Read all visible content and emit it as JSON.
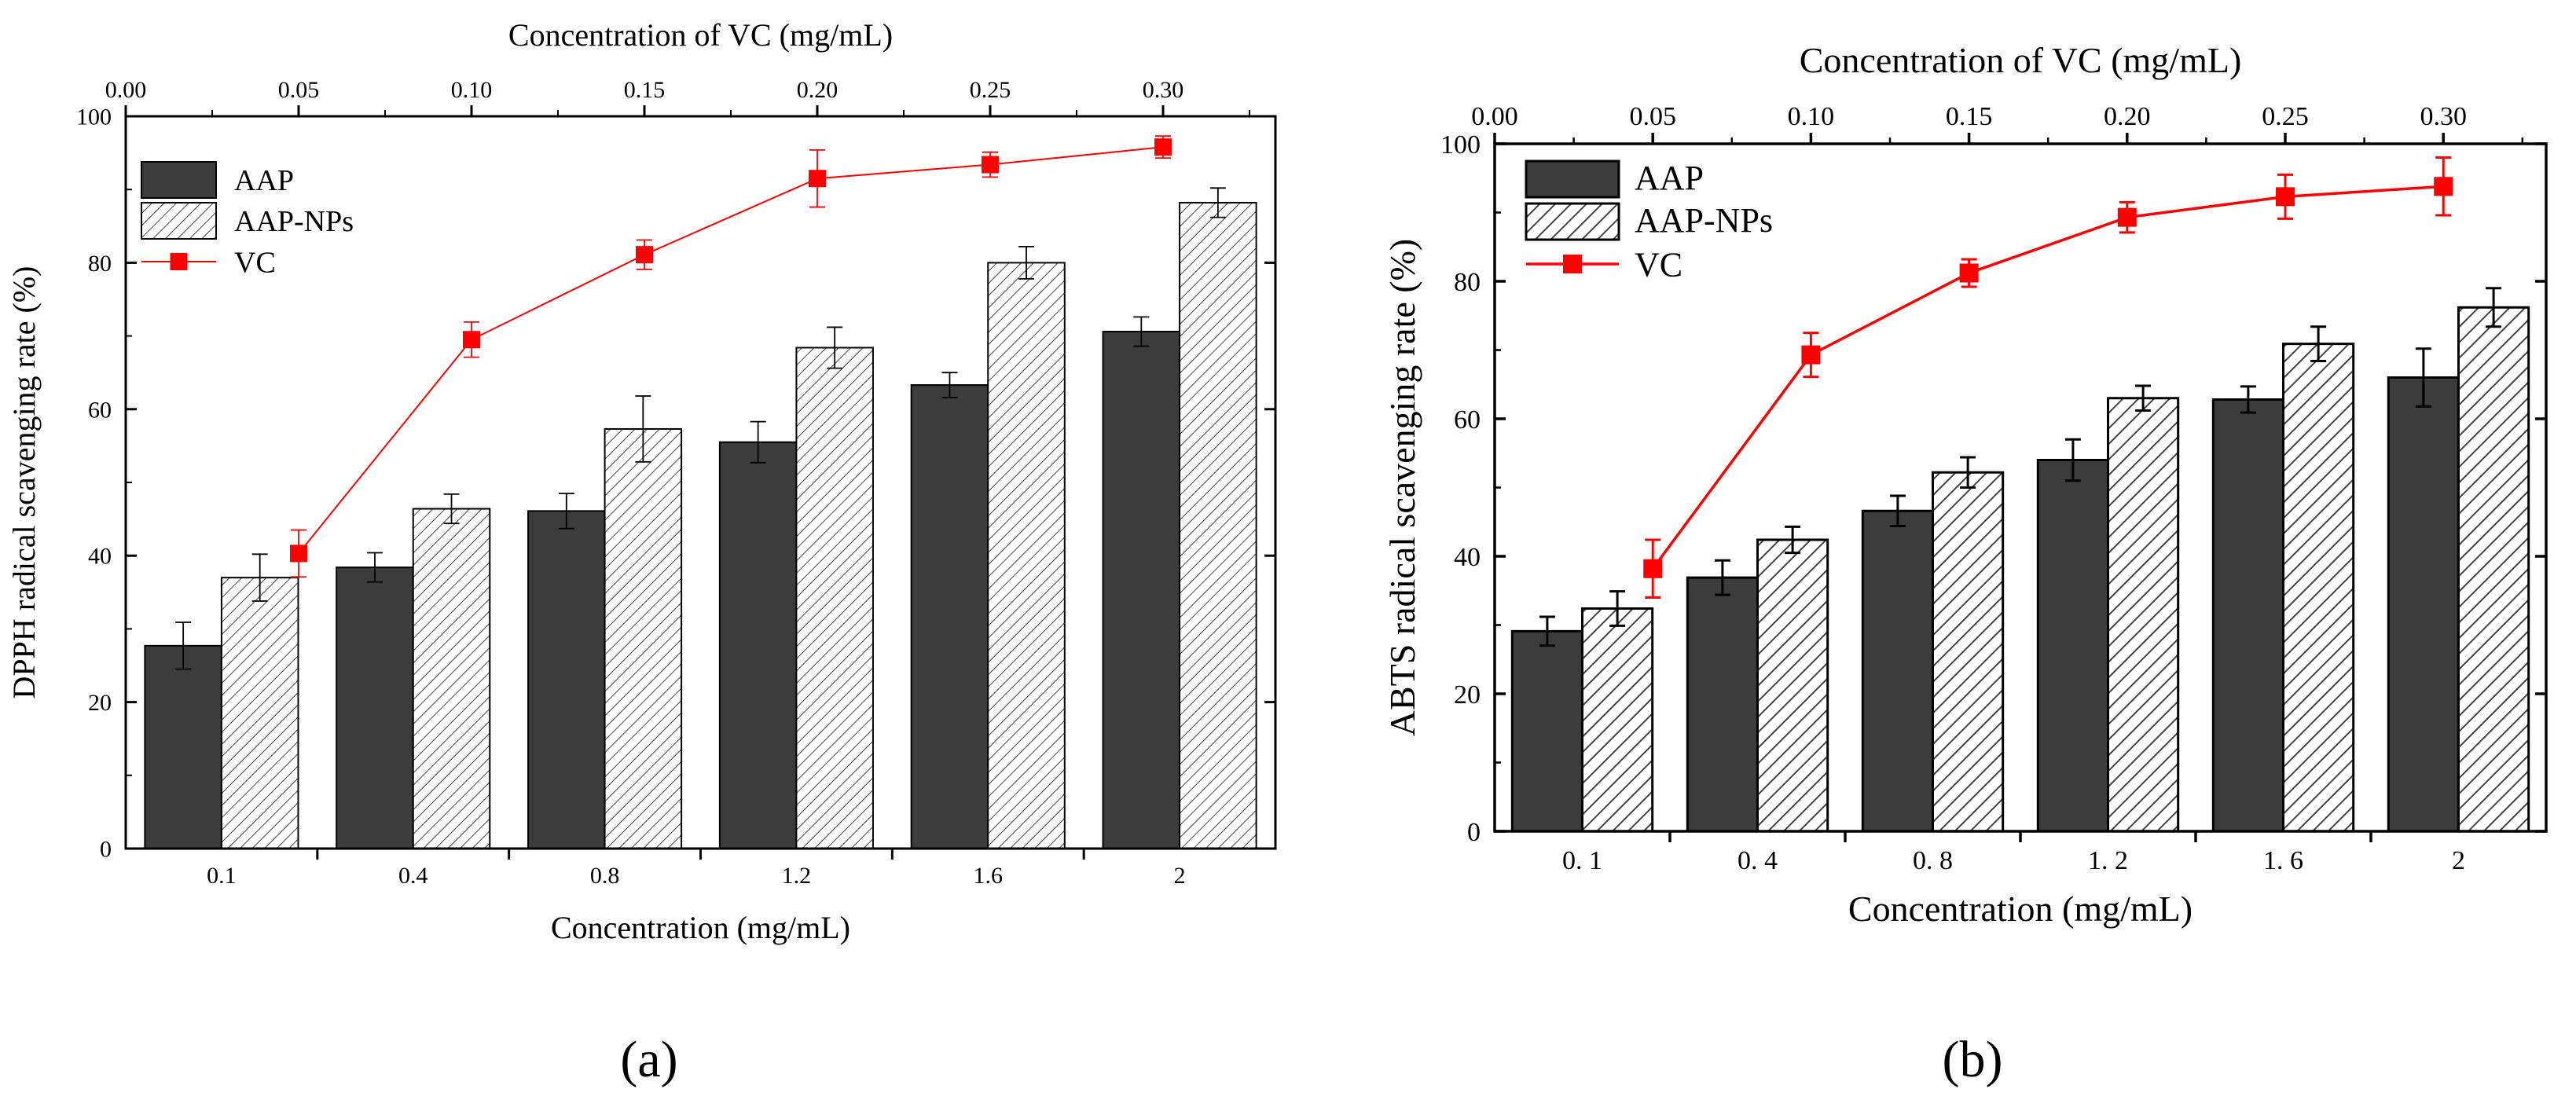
{
  "chart_data": [
    {
      "panel": "a",
      "type": "bar",
      "caption": "(a)",
      "categories": [
        "0.1",
        "0.4",
        "0.8",
        "1.2",
        "1.6",
        "2"
      ],
      "xlabel": "Concentration (mg/mL)",
      "ylabel": "DPPH radical scavenging rate (%)",
      "ylim": [
        0,
        100
      ],
      "yticks": [
        "0",
        "20",
        "40",
        "60",
        "80",
        "100"
      ],
      "top_axis": {
        "label": "Concentration of VC (mg/mL)",
        "range": [
          0.0,
          0.3325
        ],
        "ticks": [
          "0.00",
          "0.05",
          "0.10",
          "0.15",
          "0.20",
          "0.25",
          "0.30"
        ]
      },
      "series": [
        {
          "name": "AAP",
          "style": "solid",
          "values": [
            27.7,
            38.4,
            46.1,
            55.5,
            63.3,
            70.6
          ],
          "errors": [
            3.2,
            2.0,
            2.4,
            2.8,
            1.7,
            2.0
          ]
        },
        {
          "name": "AAP-NPs",
          "style": "hatch",
          "values": [
            37.0,
            46.4,
            57.3,
            68.4,
            80.0,
            88.2
          ],
          "errors": [
            3.2,
            2.0,
            4.5,
            2.8,
            2.2,
            2.0
          ]
        }
      ],
      "line_series": {
        "name": "VC",
        "x": [
          0.05,
          0.1,
          0.15,
          0.2,
          0.25,
          0.3
        ],
        "values": [
          40.3,
          69.5,
          81.1,
          91.5,
          93.4,
          95.8
        ],
        "errors": [
          3.2,
          2.4,
          2.0,
          3.9,
          1.7,
          1.5
        ]
      },
      "grid": false,
      "legend": "top-left"
    },
    {
      "panel": "b",
      "type": "bar",
      "caption": "(b)",
      "categories": [
        "0. 1",
        "0. 4",
        "0. 8",
        "1. 2",
        "1. 6",
        "2"
      ],
      "xlabel": "Concentration (mg/mL)",
      "ylabel": "ABTS radical scavenging rate (%)",
      "ylim": [
        0,
        100
      ],
      "yticks": [
        "0",
        "20",
        "40",
        "60",
        "80",
        "100"
      ],
      "top_axis": {
        "label": "Concentration of VC (mg/mL)",
        "range": [
          0.0,
          0.3325
        ],
        "ticks": [
          "0.00",
          "0.05",
          "0.10",
          "0.15",
          "0.20",
          "0.25",
          "0.30"
        ]
      },
      "series": [
        {
          "name": "AAP",
          "style": "solid",
          "values": [
            29.1,
            36.9,
            46.6,
            54.0,
            62.8,
            66.0
          ],
          "errors": [
            2.1,
            2.5,
            2.2,
            3.0,
            1.9,
            4.2
          ]
        },
        {
          "name": "AAP-NPs",
          "style": "hatch",
          "values": [
            32.4,
            42.4,
            52.2,
            63.0,
            70.9,
            76.2
          ],
          "errors": [
            2.5,
            1.9,
            2.2,
            1.8,
            2.5,
            2.8
          ]
        }
      ],
      "line_series": {
        "name": "VC",
        "x": [
          0.05,
          0.1,
          0.15,
          0.2,
          0.25,
          0.3
        ],
        "values": [
          38.2,
          69.3,
          81.2,
          89.3,
          92.3,
          93.8
        ],
        "errors": [
          4.2,
          3.2,
          2.0,
          2.2,
          3.2,
          4.2
        ]
      },
      "grid": false,
      "legend": "top-left"
    }
  ],
  "colors": {
    "bar_solid": "#3c3c3c",
    "bar_edge": "#000000",
    "hatch": "#444444",
    "vc": "#ff0000",
    "axis": "#000000"
  }
}
